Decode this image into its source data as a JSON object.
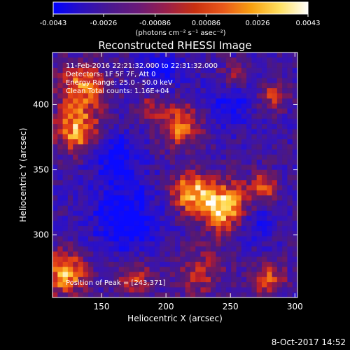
{
  "colorbar": {
    "tick_labels": [
      "-0.0043",
      "-0.0026",
      "-0.00086",
      "0.00086",
      "0.0026",
      "0.0043"
    ],
    "tick_values": [
      -0.0043,
      -0.0026,
      -0.00086,
      0.00086,
      0.0026,
      0.0043
    ],
    "range": [
      -0.0043,
      0.0043
    ],
    "units_label": "(photons cm⁻² s⁻¹ asec⁻²)",
    "colormap": [
      "#0000ff",
      "#2a10c0",
      "#4a1890",
      "#6a1a78",
      "#9a1f4a",
      "#c83010",
      "#e8581a",
      "#f8a010",
      "#ffe060",
      "#ffffff"
    ]
  },
  "chart_data": {
    "type": "heatmap",
    "title": "Reconstructed RHESSI Image",
    "xlabel": "Heliocentric X (arcsec)",
    "ylabel": "Heliocentric Y (arcsec)",
    "xlim": [
      112,
      302
    ],
    "ylim": [
      252,
      440
    ],
    "x_ticks": [
      150,
      200,
      250,
      300
    ],
    "y_ticks": [
      300,
      350,
      400
    ],
    "x_tick_labels": [
      "150",
      "200",
      "250",
      "300"
    ],
    "y_tick_labels": [
      "300",
      "350",
      "400"
    ],
    "annotations": [
      "11-Feb-2016 22:21:32.000 to 22:31:32.000",
      "Detectors: 1F 5F 7F, Att 0",
      "Energy Range: 25.0 - 50.0 keV",
      "Clean     Total counts: 1.16E+04"
    ],
    "peak_label": "Position of Peak = [243,371]",
    "peak": [
      243,
      371
    ]
  },
  "footer": {
    "timestamp": "8-Oct-2017 14:52"
  }
}
